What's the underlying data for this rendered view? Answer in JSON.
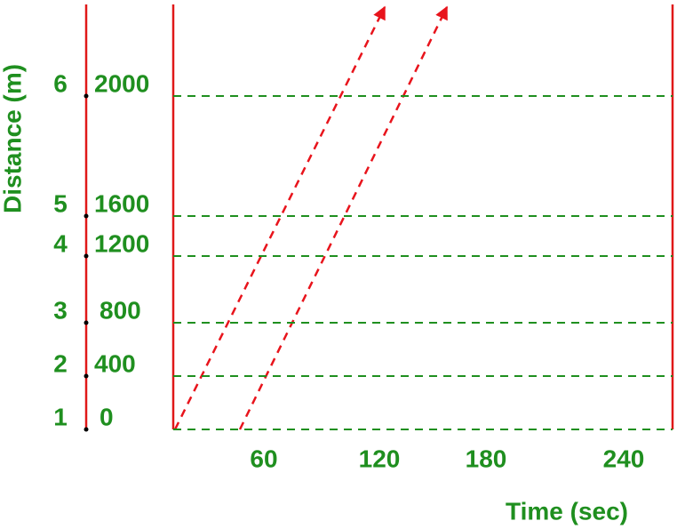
{
  "y_axis_label": "Distance (m)",
  "x_axis_label": "Time (sec)",
  "levels": [
    {
      "index": 1,
      "distance": 0
    },
    {
      "index": 2,
      "distance": 400
    },
    {
      "index": 3,
      "distance": 800
    },
    {
      "index": 4,
      "distance": 1200
    },
    {
      "index": 5,
      "distance": 1600
    },
    {
      "index": 6,
      "distance": 2000
    }
  ],
  "time_ticks": [
    60,
    120,
    180,
    240
  ]
}
